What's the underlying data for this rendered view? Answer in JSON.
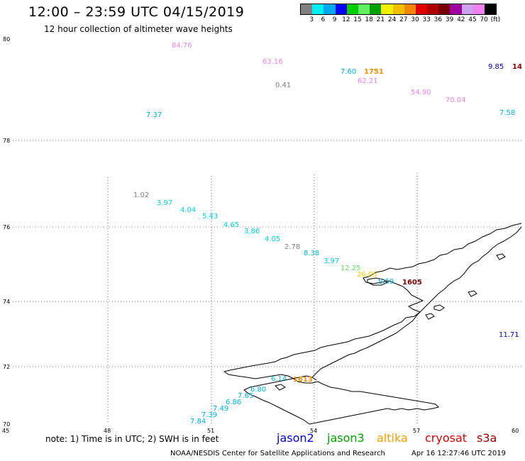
{
  "header": {
    "title": "12:00 – 23:59 UTC 04/15/2019",
    "subtitle": "12 hour collection of altimeter wave heights"
  },
  "legend": {
    "colors": [
      "#808080",
      "#00f0f0",
      "#00a8f0",
      "#0000f0",
      "#00d000",
      "#60f060",
      "#00a000",
      "#f0f000",
      "#f0c000",
      "#f08800",
      "#e00000",
      "#b00000",
      "#780000",
      "#a000a0",
      "#d0a0f0",
      "#f080f0",
      "#000000"
    ],
    "labels": [
      "3",
      "6",
      "9",
      "12",
      "15",
      "18",
      "21",
      "24",
      "27",
      "30",
      "33",
      "36",
      "39",
      "42",
      "45",
      "70",
      "(ft)"
    ]
  },
  "axes": {
    "lat_ticks": [
      "80",
      "78",
      "76",
      "74",
      "72",
      "70"
    ],
    "lon_ticks": [
      "45",
      "48",
      "51",
      "54",
      "57",
      "60"
    ]
  },
  "observations": [
    {
      "text": "84.76",
      "color": "#f080e0"
    },
    {
      "text": "63.16",
      "color": "#f080e0"
    },
    {
      "text": "7.60",
      "color": "#00b0e0"
    },
    {
      "text": "1751",
      "color": "#f09000"
    },
    {
      "text": "9.85",
      "color": "#0000c0"
    },
    {
      "text": "14",
      "color": "#900000"
    },
    {
      "text": "62.21",
      "color": "#f080e0"
    },
    {
      "text": "0.41",
      "color": "#808080"
    },
    {
      "text": "54.90",
      "color": "#f080e0"
    },
    {
      "text": "70.04",
      "color": "#f080e0"
    },
    {
      "text": "7.37",
      "color": "#00b0e0"
    },
    {
      "text": "7.58",
      "color": "#00b0e0"
    },
    {
      "text": "1.02",
      "color": "#808080"
    },
    {
      "text": "3.97",
      "color": "#00d0e0"
    },
    {
      "text": "4.04",
      "color": "#00d0e0"
    },
    {
      "text": "5.43",
      "color": "#00d0e0"
    },
    {
      "text": "4.65",
      "color": "#00d0e0"
    },
    {
      "text": "3.86",
      "color": "#00d0e0"
    },
    {
      "text": "4.05",
      "color": "#00d0e0"
    },
    {
      "text": "2.78",
      "color": "#808080"
    },
    {
      "text": "8.38",
      "color": "#00b0e0"
    },
    {
      "text": "3.97",
      "color": "#00d0e0"
    },
    {
      "text": "12.25",
      "color": "#60e060"
    },
    {
      "text": "26.05",
      "color": "#f0d000"
    },
    {
      "text": "8.59",
      "color": "#00b0e0"
    },
    {
      "text": "1605",
      "color": "#800000"
    },
    {
      "text": "11.71",
      "color": "#0000c0"
    },
    {
      "text": "6.14",
      "color": "#00b0e0"
    },
    {
      "text": "1613",
      "color": "#f09000"
    },
    {
      "text": "6.80",
      "color": "#00b0e0"
    },
    {
      "text": "7.65",
      "color": "#00b0e0"
    },
    {
      "text": "6.86",
      "color": "#00b0e0"
    },
    {
      "text": "7.49",
      "color": "#00b0e0"
    },
    {
      "text": "7.39",
      "color": "#00b0e0"
    },
    {
      "text": "7.84",
      "color": "#00b0e0"
    }
  ],
  "footer": {
    "note": "note: 1) Time is in UTC; 2) SWH is in feet",
    "satellites": [
      {
        "name": "jason2",
        "color": "#0000e0"
      },
      {
        "name": "jason3",
        "color": "#00a000"
      },
      {
        "name": "altika",
        "color": "#f0a000"
      },
      {
        "name": "cryosat",
        "color": "#e00000"
      },
      {
        "name": "s3a",
        "color": "#a00000"
      }
    ],
    "credit": "NOAA/NESDIS Center for Satellite Applications and Research",
    "timestamp": "Apr 16 12:27:46 UTC 2019"
  }
}
